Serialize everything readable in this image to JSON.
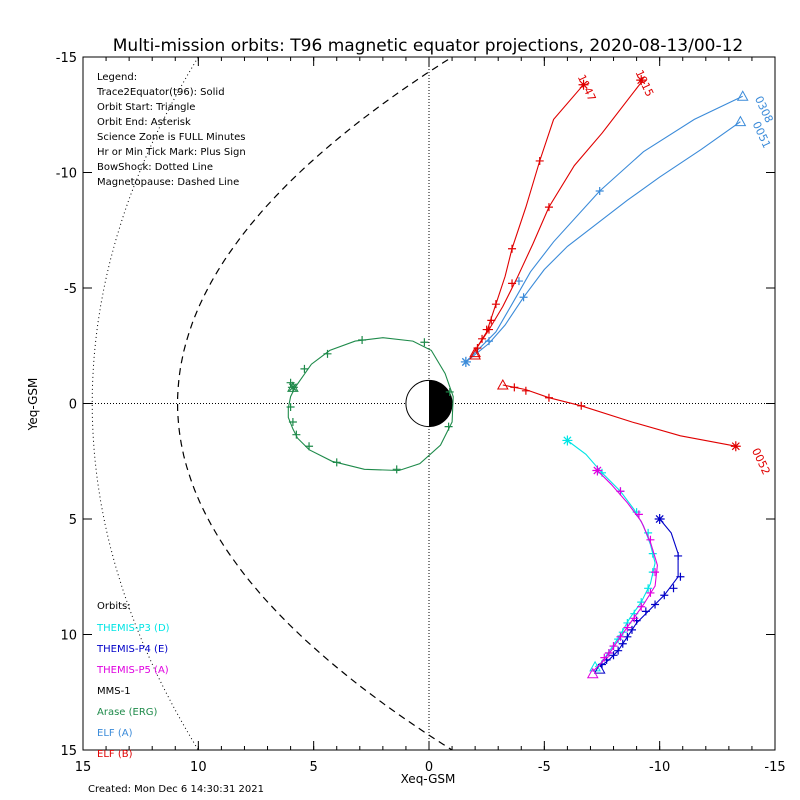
{
  "chart_data": {
    "type": "line",
    "title": "Multi-mission orbits: T96 magnetic equator projections, 2020-08-13/00-12",
    "xlabel": "Xeq-GSM",
    "ylabel": "Yeq-GSM",
    "xlim": [
      15,
      -15
    ],
    "ylim": [
      15,
      -15
    ],
    "xticks": [
      15,
      10,
      5,
      0,
      -5,
      -10,
      -15
    ],
    "yticks": [
      -15,
      -10,
      -5,
      0,
      5,
      10,
      15
    ],
    "xtick_labels": [
      "15",
      "10",
      "5",
      "0",
      "-5",
      "-10",
      "-15"
    ],
    "ytick_labels": [
      "-15",
      "-10",
      "-5",
      "0",
      "5",
      "10",
      "15"
    ],
    "legend_lines": [
      "Legend:",
      "Trace2Equator(t96): Solid",
      "Orbit Start: Triangle",
      "Orbit End: Asterisk",
      "Science Zone is FULL Minutes",
      "Hr or Min Tick Mark: Plus Sign",
      "BowShock: Dotted Line",
      "Magnetopause: Dashed Line"
    ],
    "orbits_header": "Orbits:",
    "orbit_entries": [
      {
        "label": "THEMIS-P3 (D)",
        "color": "#00e5e5"
      },
      {
        "label": "THEMIS-P4 (E)",
        "color": "#0000c8"
      },
      {
        "label": "THEMIS-P5 (A)",
        "color": "#e000e0"
      },
      {
        "label": "MMS-1",
        "color": "#000000"
      },
      {
        "label": "Arase (ERG)",
        "color": "#1e8a4a"
      },
      {
        "label": "ELF (A)",
        "color": "#3b8bd9"
      },
      {
        "label": "ELF (B)",
        "color": "#e00000"
      }
    ],
    "created_text": "Created: Mon Dec  6 14:30:31 2021",
    "boundaries": {
      "bow_shock": {
        "style": "dotted",
        "nose_x": 14.6,
        "flank_y_at_x10": 15
      },
      "magnetopause": {
        "style": "dashed",
        "nose_x": 10.9,
        "flank_y_at_x_minus1": 15
      }
    },
    "series": [
      {
        "name": "Arase (ERG)",
        "color": "#1e8a4a",
        "points": [
          [
            5.8,
            -0.7
          ],
          [
            6.0,
            -0.3
          ],
          [
            6.1,
            0.2
          ],
          [
            6.1,
            0.6
          ],
          [
            5.9,
            1.1
          ],
          [
            5.7,
            1.5
          ],
          [
            5.2,
            2.0
          ],
          [
            4.2,
            2.5
          ],
          [
            2.8,
            2.85
          ],
          [
            1.3,
            2.9
          ],
          [
            0.4,
            2.6
          ],
          [
            -0.5,
            1.8
          ],
          [
            -1.0,
            0.8
          ],
          [
            -1.05,
            -0.3
          ],
          [
            -0.7,
            -1.3
          ],
          [
            -0.1,
            -2.3
          ],
          [
            0.7,
            -2.7
          ],
          [
            2.0,
            -2.85
          ],
          [
            3.2,
            -2.7
          ],
          [
            4.3,
            -2.3
          ],
          [
            5.1,
            -1.7
          ],
          [
            5.8,
            -0.7
          ]
        ],
        "ticks": [
          [
            6.0,
            0.15
          ],
          [
            5.9,
            0.8
          ],
          [
            5.75,
            1.35
          ],
          [
            5.2,
            1.85
          ],
          [
            4.0,
            2.55
          ],
          [
            1.4,
            2.85
          ],
          [
            -0.85,
            1.0
          ],
          [
            -0.9,
            -0.5
          ],
          [
            0.2,
            -2.65
          ],
          [
            2.9,
            -2.75
          ],
          [
            4.4,
            -2.15
          ],
          [
            5.4,
            -1.5
          ],
          [
            6.0,
            -0.9
          ]
        ],
        "start": [
          5.9,
          -0.7
        ],
        "end": [
          5.9,
          -0.7
        ]
      },
      {
        "name": "THEMIS-P3 (D)",
        "color": "#00e5e5",
        "points": [
          [
            -6.0,
            1.6
          ],
          [
            -6.8,
            2.2
          ],
          [
            -7.5,
            3.0
          ],
          [
            -8.3,
            3.8
          ],
          [
            -8.9,
            4.6
          ],
          [
            -9.3,
            5.3
          ],
          [
            -9.6,
            6.1
          ],
          [
            -9.8,
            6.9
          ],
          [
            -9.6,
            7.8
          ],
          [
            -9.2,
            8.6
          ],
          [
            -8.7,
            9.3
          ],
          [
            -8.3,
            10.0
          ],
          [
            -7.9,
            10.6
          ],
          [
            -7.5,
            11.2
          ],
          [
            -7.2,
            11.4
          ]
        ],
        "ticks": [
          [
            -7.5,
            3.0
          ],
          [
            -8.3,
            3.8
          ],
          [
            -9.0,
            4.7
          ],
          [
            -9.5,
            5.6
          ],
          [
            -9.7,
            6.5
          ],
          [
            -9.7,
            7.3
          ],
          [
            -9.5,
            8.0
          ],
          [
            -9.2,
            8.6
          ],
          [
            -8.9,
            9.1
          ],
          [
            -8.6,
            9.5
          ],
          [
            -8.4,
            9.9
          ],
          [
            -8.2,
            10.2
          ],
          [
            -8.0,
            10.5
          ],
          [
            -7.8,
            10.8
          ]
        ],
        "start": [
          -7.2,
          11.4
        ],
        "end": [
          -6.0,
          1.6
        ]
      },
      {
        "name": "THEMIS-P4 (E)",
        "color": "#0000c8",
        "points": [
          [
            -10.0,
            5.0
          ],
          [
            -10.5,
            5.6
          ],
          [
            -10.8,
            6.5
          ],
          [
            -10.8,
            7.5
          ],
          [
            -10.2,
            8.3
          ],
          [
            -9.6,
            8.9
          ],
          [
            -9.0,
            9.5
          ],
          [
            -8.6,
            10.1
          ],
          [
            -8.2,
            10.7
          ],
          [
            -7.8,
            11.1
          ],
          [
            -7.4,
            11.4
          ]
        ],
        "ticks": [
          [
            -10.8,
            6.6
          ],
          [
            -10.9,
            7.5
          ],
          [
            -10.6,
            8.0
          ],
          [
            -10.2,
            8.3
          ],
          [
            -9.8,
            8.7
          ],
          [
            -9.4,
            9.0
          ],
          [
            -9.0,
            9.4
          ],
          [
            -8.8,
            9.8
          ],
          [
            -8.6,
            10.1
          ],
          [
            -8.4,
            10.4
          ],
          [
            -8.2,
            10.7
          ],
          [
            -8.0,
            10.9
          ],
          [
            -7.7,
            11.1
          ],
          [
            -7.5,
            11.3
          ]
        ],
        "start": [
          -7.4,
          11.5
        ],
        "end": [
          -10.0,
          5.0
        ]
      },
      {
        "name": "THEMIS-P5 (A)",
        "color": "#e000e0",
        "points": [
          [
            -7.3,
            2.9
          ],
          [
            -7.9,
            3.5
          ],
          [
            -8.6,
            4.3
          ],
          [
            -9.2,
            5.1
          ],
          [
            -9.6,
            6.0
          ],
          [
            -9.9,
            7.0
          ],
          [
            -9.8,
            7.9
          ],
          [
            -9.3,
            8.7
          ],
          [
            -8.8,
            9.4
          ],
          [
            -8.3,
            10.1
          ],
          [
            -7.9,
            10.7
          ],
          [
            -7.5,
            11.2
          ],
          [
            -7.1,
            11.6
          ]
        ],
        "ticks": [
          [
            -8.3,
            3.8
          ],
          [
            -9.1,
            4.8
          ],
          [
            -9.6,
            5.9
          ],
          [
            -9.8,
            7.3
          ],
          [
            -9.6,
            8.2
          ],
          [
            -9.2,
            8.8
          ],
          [
            -8.9,
            9.3
          ],
          [
            -8.6,
            9.7
          ],
          [
            -8.3,
            10.1
          ],
          [
            -8.0,
            10.5
          ],
          [
            -7.8,
            10.8
          ],
          [
            -7.6,
            11.0
          ]
        ],
        "start": [
          -7.1,
          11.7
        ],
        "end": [
          -7.3,
          2.9
        ]
      },
      {
        "name": "ELF (A)",
        "color": "#3b8bd9",
        "label": "0051",
        "points": [
          [
            -1.6,
            -1.8
          ],
          [
            -2.6,
            -2.6
          ],
          [
            -3.3,
            -3.4
          ],
          [
            -4.1,
            -4.6
          ],
          [
            -5.0,
            -5.8
          ],
          [
            -6.0,
            -6.8
          ],
          [
            -7.3,
            -7.8
          ],
          [
            -8.6,
            -8.8
          ],
          [
            -10.0,
            -9.8
          ],
          [
            -11.8,
            -11.0
          ],
          [
            -13.5,
            -12.2
          ]
        ],
        "ticks": [
          [
            -2.6,
            -2.7
          ],
          [
            -4.1,
            -4.6
          ]
        ],
        "start": [
          -13.5,
          -12.2
        ],
        "end": [
          -1.6,
          -1.8
        ]
      },
      {
        "name": "ELF (A)",
        "color": "#3b8bd9",
        "label": "0308",
        "points": [
          [
            -1.6,
            -1.8
          ],
          [
            -2.9,
            -3.1
          ],
          [
            -3.6,
            -4.3
          ],
          [
            -4.4,
            -5.7
          ],
          [
            -5.4,
            -7.0
          ],
          [
            -7.4,
            -9.2
          ],
          [
            -9.3,
            -10.9
          ],
          [
            -11.5,
            -12.3
          ],
          [
            -13.6,
            -13.3
          ]
        ],
        "ticks": [
          [
            -3.9,
            -5.3
          ],
          [
            -7.4,
            -9.2
          ]
        ],
        "start": [
          -13.6,
          -13.3
        ],
        "end": [
          -1.6,
          -1.8
        ]
      },
      {
        "name": "ELF (B)",
        "color": "#e00000",
        "label": "1147",
        "points": [
          [
            -2.0,
            -2.3
          ],
          [
            -2.5,
            -3.1
          ],
          [
            -2.9,
            -4.3
          ],
          [
            -3.3,
            -5.5
          ],
          [
            -3.6,
            -6.7
          ],
          [
            -4.2,
            -8.5
          ],
          [
            -4.8,
            -10.5
          ],
          [
            -5.4,
            -12.3
          ],
          [
            -6.7,
            -13.8
          ]
        ],
        "ticks": [
          [
            -2.1,
            -2.4
          ],
          [
            -2.3,
            -2.8
          ],
          [
            -2.5,
            -3.2
          ],
          [
            -2.7,
            -3.6
          ],
          [
            -2.9,
            -4.3
          ],
          [
            -3.6,
            -6.7
          ],
          [
            -4.8,
            -10.5
          ]
        ],
        "start": [
          -2.0,
          -2.1
        ],
        "end": [
          -6.7,
          -13.8
        ]
      },
      {
        "name": "ELF (B)",
        "color": "#e00000",
        "label": "1015",
        "points": [
          [
            -2.0,
            -2.3
          ],
          [
            -2.6,
            -3.2
          ],
          [
            -3.2,
            -4.2
          ],
          [
            -3.8,
            -5.4
          ],
          [
            -4.5,
            -6.9
          ],
          [
            -5.2,
            -8.5
          ],
          [
            -6.3,
            -10.3
          ],
          [
            -7.5,
            -11.7
          ],
          [
            -9.2,
            -13.9
          ]
        ],
        "ticks": [
          [
            -2.6,
            -3.2
          ],
          [
            -3.6,
            -5.2
          ],
          [
            -5.2,
            -8.5
          ]
        ],
        "start": [
          -2.0,
          -2.2
        ],
        "end": [
          -9.2,
          -14.0
        ]
      },
      {
        "name": "ELF (B)",
        "color": "#e00000",
        "label": "0052",
        "points": [
          [
            -3.2,
            -0.8
          ],
          [
            -3.7,
            -0.7
          ],
          [
            -4.2,
            -0.6
          ],
          [
            -5.2,
            -0.25
          ],
          [
            -6.6,
            0.1
          ],
          [
            -8.8,
            0.8
          ],
          [
            -10.9,
            1.4
          ],
          [
            -13.3,
            1.85
          ]
        ],
        "ticks": [
          [
            -3.7,
            -0.7
          ],
          [
            -4.2,
            -0.55
          ],
          [
            -5.2,
            -0.25
          ],
          [
            -6.6,
            0.1
          ]
        ],
        "start": [
          -3.2,
          -0.8
        ],
        "end": [
          -13.3,
          1.85
        ]
      }
    ]
  }
}
